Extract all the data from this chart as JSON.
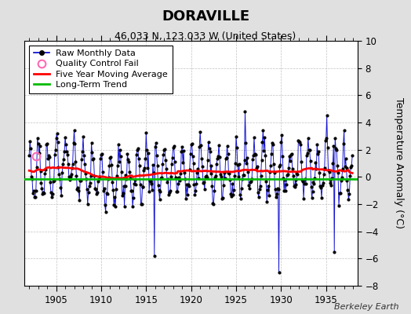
{
  "title": "DORAVILLE",
  "subtitle": "46.033 N, 123.033 W (United States)",
  "ylabel": "Temperature Anomaly (°C)",
  "credit": "Berkeley Earth",
  "xlim": [
    1901.5,
    1938.5
  ],
  "ylim": [
    -8,
    10
  ],
  "yticks": [
    -8,
    -6,
    -4,
    -2,
    0,
    2,
    4,
    6,
    8,
    10
  ],
  "xticks": [
    1905,
    1910,
    1915,
    1920,
    1925,
    1930,
    1935
  ],
  "fig_bg_color": "#e0e0e0",
  "plot_bg_color": "#ffffff",
  "raw_line_color": "#0000cc",
  "raw_marker_color": "#000000",
  "moving_avg_color": "#ff0000",
  "trend_color": "#00bb00",
  "qc_color": "#ff69b4",
  "title_fontsize": 13,
  "subtitle_fontsize": 9,
  "ylabel_fontsize": 9,
  "tick_fontsize": 8.5,
  "legend_fontsize": 8,
  "qc_x": 1902.75,
  "qc_y": 1.5,
  "trend_y": -0.15
}
